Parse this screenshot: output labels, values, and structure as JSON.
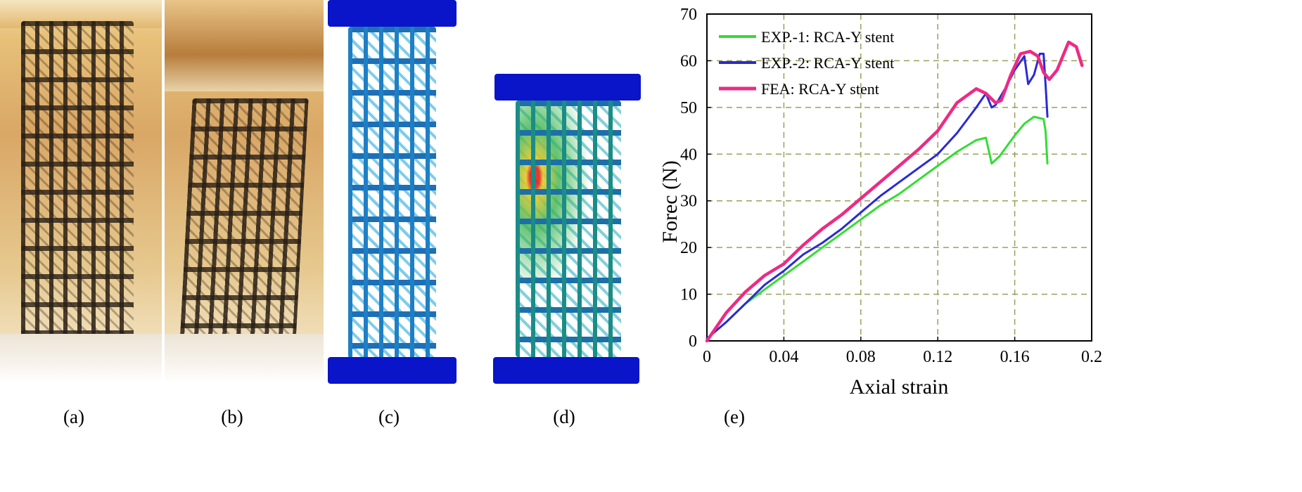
{
  "captions": {
    "a": "(a)",
    "b": "(b)",
    "c": "(c)",
    "d": "(d)",
    "e": "(e)"
  },
  "colors": {
    "exp1": "#33dd33",
    "exp2": "#2a2ad6",
    "fea": "#ee2a84",
    "grid": "#9aa05a",
    "plate": "#0a14c8"
  },
  "chart_data": {
    "type": "line",
    "title": "",
    "xlabel": "Axial strain",
    "ylabel": "Forec (N)",
    "xlim": [
      0,
      0.2
    ],
    "ylim": [
      0,
      70
    ],
    "xticks": [
      0,
      0.04,
      0.08,
      0.12,
      0.16,
      0.2
    ],
    "xtick_labels": [
      "0",
      "0.04",
      "0.08",
      "0.12",
      "0.16",
      "0.2"
    ],
    "yticks": [
      0,
      10,
      20,
      30,
      40,
      50,
      60,
      70
    ],
    "ytick_labels": [
      "0",
      "10",
      "20",
      "30",
      "40",
      "50",
      "60",
      "70"
    ],
    "grid": true,
    "grid_style": "dashed",
    "legend_position": "top-left",
    "series": [
      {
        "name": "EXP.-1: RCA-Y stent",
        "color": "#33dd33",
        "x": [
          0,
          0.01,
          0.02,
          0.03,
          0.04,
          0.05,
          0.06,
          0.07,
          0.08,
          0.09,
          0.1,
          0.11,
          0.12,
          0.13,
          0.14,
          0.145,
          0.148,
          0.152,
          0.16,
          0.165,
          0.17,
          0.175,
          0.176,
          0.177
        ],
        "y": [
          0.5,
          4,
          8,
          11,
          14,
          17,
          20,
          23,
          26,
          29,
          31.5,
          34.5,
          37.5,
          40.5,
          43,
          43.5,
          38,
          39.5,
          44,
          46.5,
          48,
          47.5,
          45,
          38
        ]
      },
      {
        "name": "EXP.-2: RCA-Y stent",
        "color": "#2a2ad6",
        "x": [
          0,
          0.01,
          0.02,
          0.03,
          0.04,
          0.05,
          0.06,
          0.07,
          0.08,
          0.09,
          0.1,
          0.11,
          0.12,
          0.13,
          0.14,
          0.145,
          0.148,
          0.15,
          0.155,
          0.16,
          0.165,
          0.167,
          0.17,
          0.173,
          0.175,
          0.176,
          0.177
        ],
        "y": [
          0.5,
          4,
          8,
          12,
          15,
          18.5,
          21,
          24,
          27.5,
          31,
          34,
          37,
          40,
          44.5,
          50,
          53,
          50,
          50.5,
          54,
          58,
          61,
          55,
          57,
          61.5,
          61.5,
          55,
          48
        ]
      },
      {
        "name": "FEA: RCA-Y stent",
        "color": "#ee2a84",
        "x": [
          0,
          0.01,
          0.02,
          0.03,
          0.04,
          0.05,
          0.06,
          0.07,
          0.08,
          0.09,
          0.1,
          0.11,
          0.12,
          0.13,
          0.14,
          0.145,
          0.15,
          0.153,
          0.158,
          0.163,
          0.168,
          0.172,
          0.175,
          0.178,
          0.182,
          0.188,
          0.192,
          0.195
        ],
        "y": [
          0,
          6,
          10.5,
          14,
          16.5,
          20.5,
          24,
          27,
          30.5,
          34,
          37.5,
          41,
          45,
          51,
          54,
          53,
          51,
          51.5,
          57,
          61.5,
          62,
          61,
          57.5,
          56,
          58,
          64,
          63,
          59
        ]
      }
    ]
  }
}
